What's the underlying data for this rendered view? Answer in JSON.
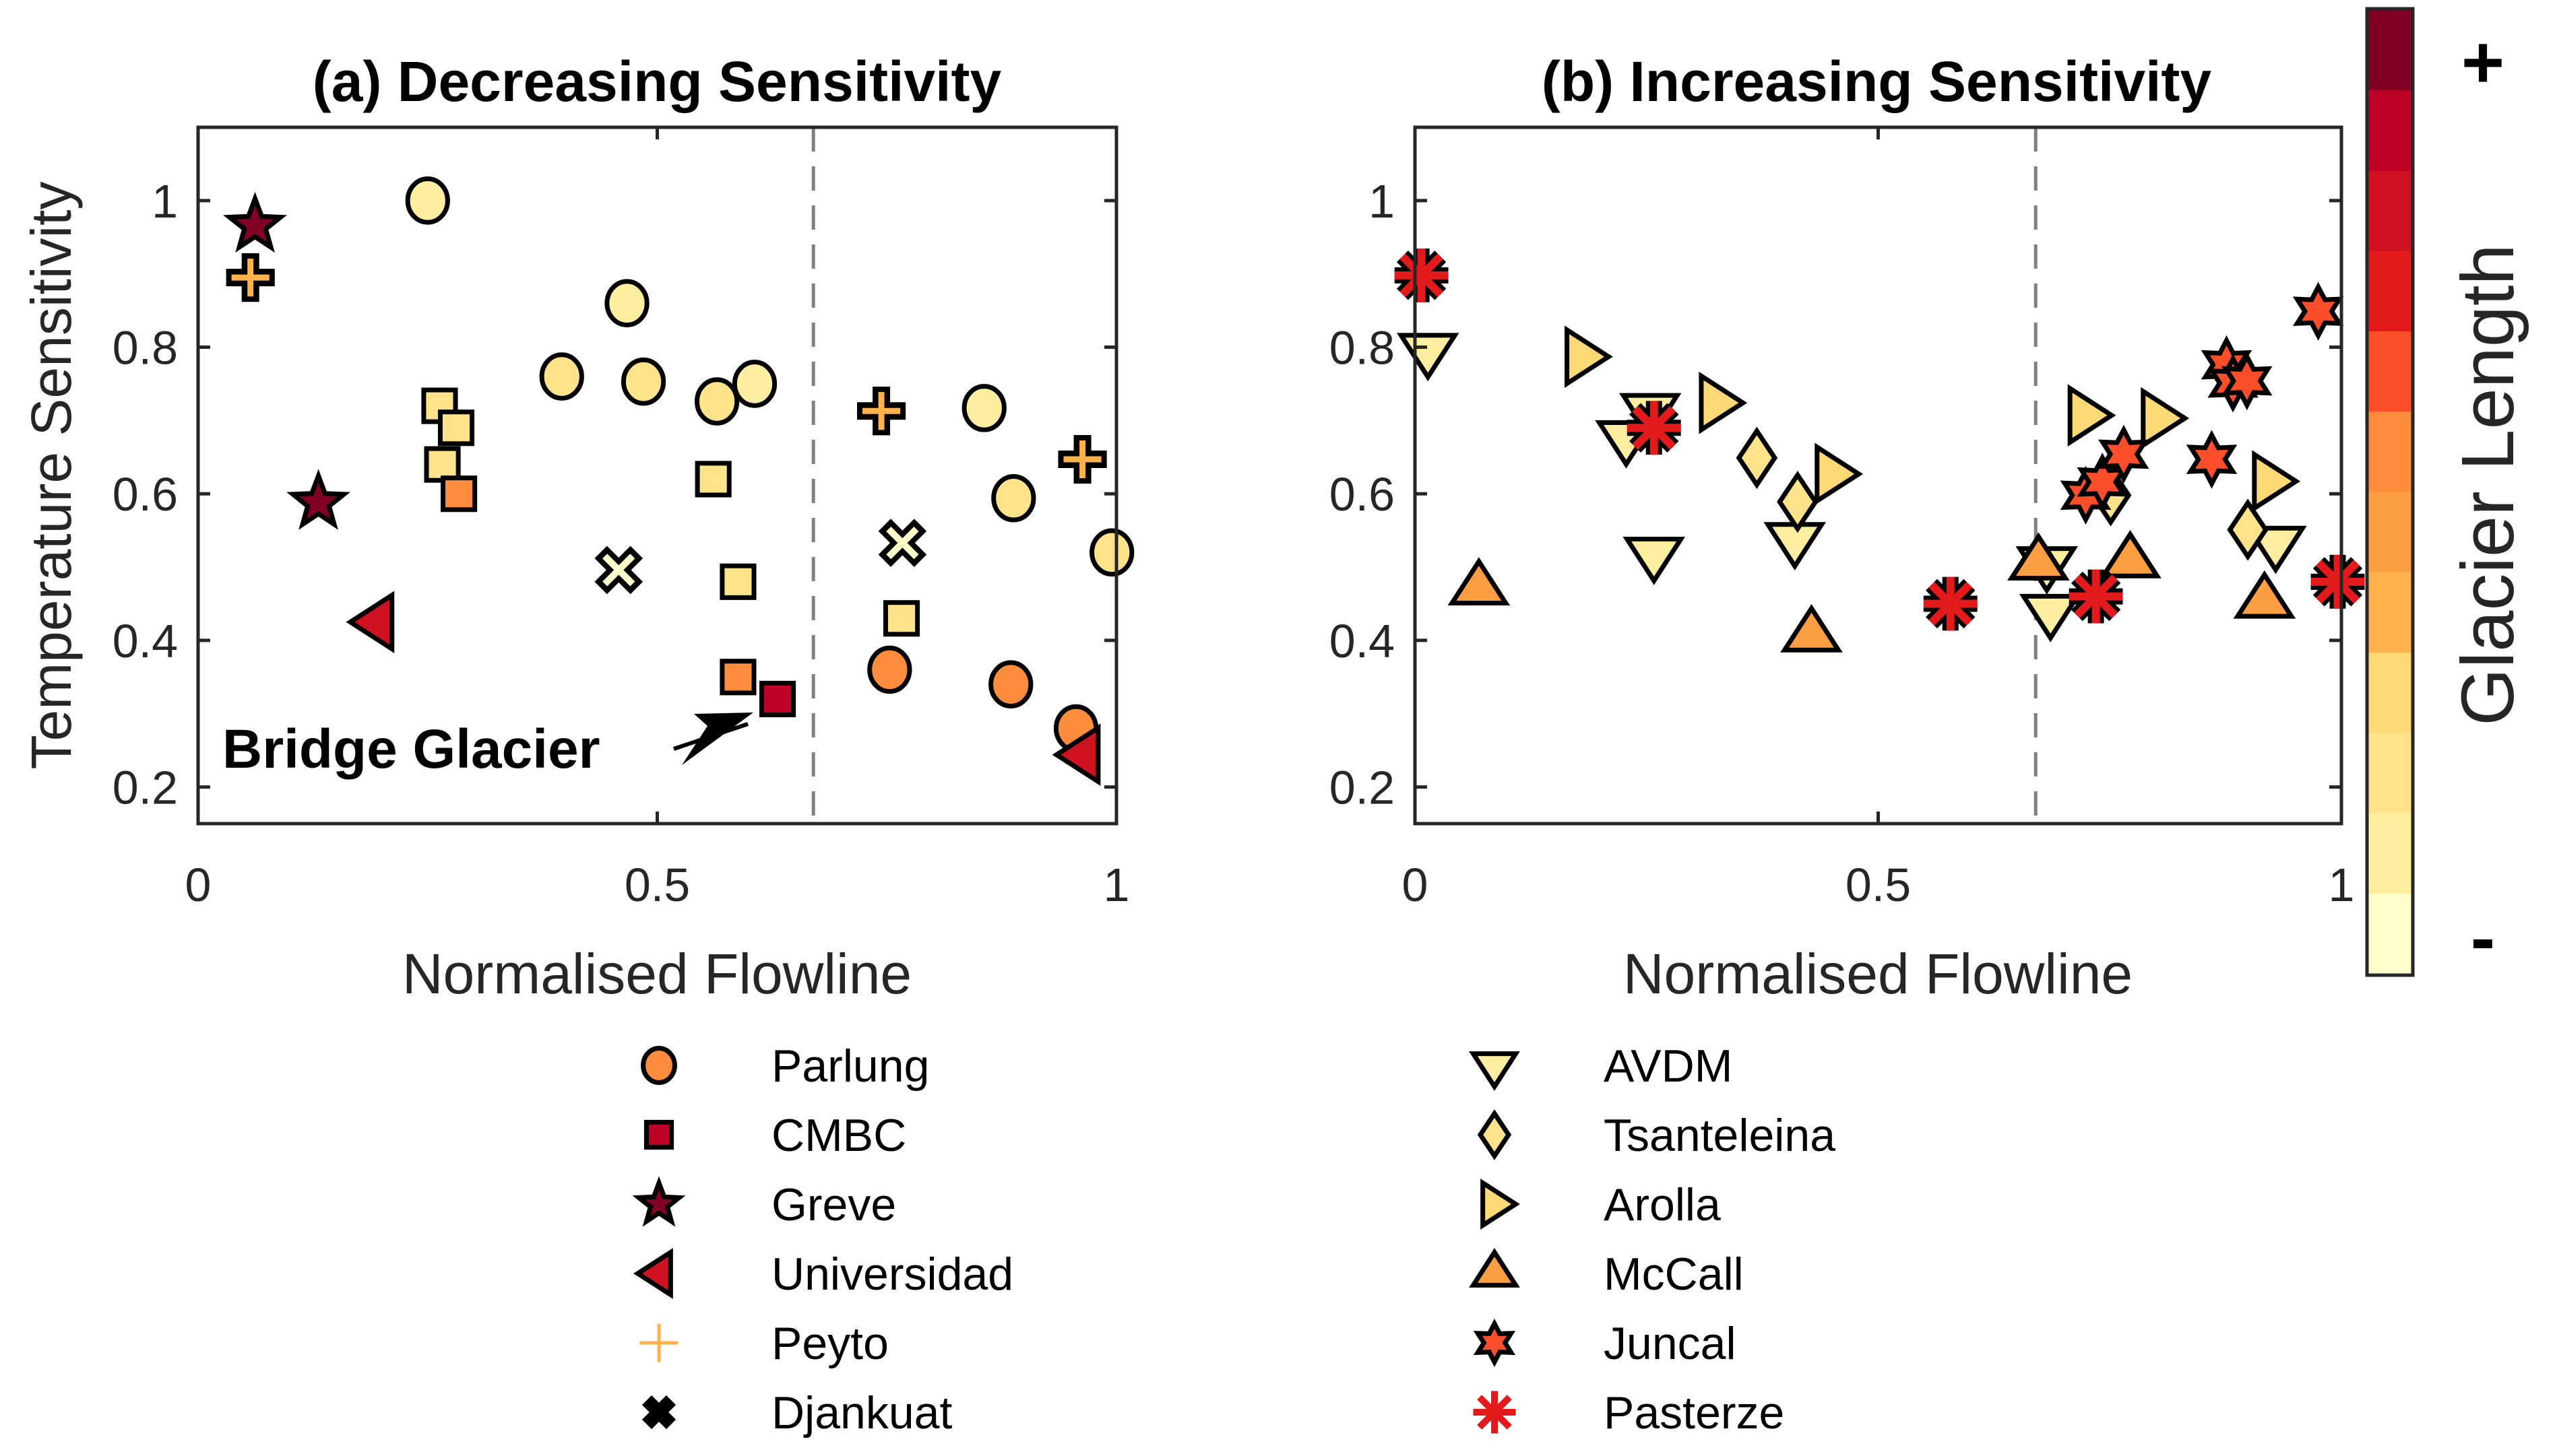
{
  "chart_data": [
    {
      "type": "scatter",
      "title": "(a) Decreasing Sensitivity",
      "xlabel": "Normalised Flowline",
      "ylabel": "Temperature Sensitivity",
      "xlim": [
        0,
        1
      ],
      "ylim": [
        0.15,
        1.1
      ],
      "xticks": [
        0,
        0.5,
        1
      ],
      "xtick_labels": [
        "0",
        "0.5",
        "1"
      ],
      "yticks": [
        0.2,
        0.4,
        0.6,
        0.8,
        1
      ],
      "ytick_labels": [
        "0.2",
        "0.4",
        "0.6",
        "0.8",
        "1"
      ],
      "grid": false,
      "vline": {
        "x": 0.67,
        "style": "dashed"
      },
      "annotation": {
        "text": "Bridge Glacier",
        "points_to": {
          "x": 0.631,
          "y": 0.32
        }
      },
      "series": [
        {
          "name": "Parlung",
          "marker": "circle",
          "points": [
            {
              "x": 0.25,
              "y": 1.0,
              "color": "#FFEDA0"
            },
            {
              "x": 0.467,
              "y": 0.86,
              "color": "#FFEDA0"
            },
            {
              "x": 0.396,
              "y": 0.76,
              "color": "#FEE38A"
            },
            {
              "x": 0.485,
              "y": 0.753,
              "color": "#FEE38A"
            },
            {
              "x": 0.565,
              "y": 0.726,
              "color": "#FEE38A"
            },
            {
              "x": 0.606,
              "y": 0.75,
              "color": "#FFEDA0"
            },
            {
              "x": 0.856,
              "y": 0.717,
              "color": "#FFEDA0"
            },
            {
              "x": 0.888,
              "y": 0.594,
              "color": "#FEE38A"
            },
            {
              "x": 0.995,
              "y": 0.52,
              "color": "#FEE38A"
            },
            {
              "x": 0.753,
              "y": 0.36,
              "color": "#FD8D3C"
            },
            {
              "x": 0.885,
              "y": 0.34,
              "color": "#FD8D3C"
            },
            {
              "x": 0.956,
              "y": 0.28,
              "color": "#FD8D3C"
            }
          ]
        },
        {
          "name": "CMBC",
          "marker": "square",
          "points": [
            {
              "x": 0.263,
              "y": 0.72,
              "color": "#FEE38A"
            },
            {
              "x": 0.281,
              "y": 0.69,
              "color": "#FEE38A"
            },
            {
              "x": 0.266,
              "y": 0.64,
              "color": "#FEE38A"
            },
            {
              "x": 0.284,
              "y": 0.6,
              "color": "#FD8D3C"
            },
            {
              "x": 0.561,
              "y": 0.62,
              "color": "#FEE38A"
            },
            {
              "x": 0.588,
              "y": 0.48,
              "color": "#FEE38A"
            },
            {
              "x": 0.766,
              "y": 0.43,
              "color": "#FEE38A"
            },
            {
              "x": 0.588,
              "y": 0.35,
              "color": "#FD8D3C"
            },
            {
              "x": 0.631,
              "y": 0.32,
              "color": "#BD0026"
            }
          ]
        },
        {
          "name": "Greve",
          "marker": "star5",
          "points": [
            {
              "x": 0.062,
              "y": 0.966,
              "color": "#800026"
            },
            {
              "x": 0.131,
              "y": 0.588,
              "color": "#800026"
            }
          ]
        },
        {
          "name": "Universidad",
          "marker": "triangle-left",
          "points": [
            {
              "x": 0.195,
              "y": 0.425,
              "color": "#D0111F"
            },
            {
              "x": 0.964,
              "y": 0.244,
              "color": "#D0111F"
            }
          ]
        },
        {
          "name": "Peyto",
          "marker": "plus",
          "points": [
            {
              "x": 0.057,
              "y": 0.895,
              "color": "#FEB24C"
            },
            {
              "x": 0.744,
              "y": 0.713,
              "color": "#FEB24C"
            },
            {
              "x": 0.963,
              "y": 0.647,
              "color": "#FEB24C"
            }
          ]
        },
        {
          "name": "Djankuat",
          "marker": "x",
          "points": [
            {
              "x": 0.458,
              "y": 0.496,
              "color": "#FFFFCC"
            },
            {
              "x": 0.767,
              "y": 0.533,
              "color": "#FFFFCC"
            }
          ]
        }
      ]
    },
    {
      "type": "scatter",
      "title": "(b) Increasing Sensitivity",
      "xlabel": "Normalised Flowline",
      "ylabel": "",
      "xlim": [
        0,
        1
      ],
      "ylim": [
        0.15,
        1.1
      ],
      "xticks": [
        0,
        0.5,
        1
      ],
      "xtick_labels": [
        "0",
        "0.5",
        "1"
      ],
      "yticks": [
        0.2,
        0.4,
        0.6,
        0.8,
        1
      ],
      "ytick_labels": [
        "0.2",
        "0.4",
        "0.6",
        "0.8",
        "1"
      ],
      "grid": false,
      "vline": {
        "x": 0.67,
        "style": "dashed"
      },
      "series": [
        {
          "name": "AVDM",
          "marker": "triangle-down",
          "points": [
            {
              "x": 0.014,
              "y": 0.796,
              "color": "#FFEDA0"
            },
            {
              "x": 0.254,
              "y": 0.714,
              "color": "#FFEDA0"
            },
            {
              "x": 0.228,
              "y": 0.677,
              "color": "#FFEDA0"
            },
            {
              "x": 0.258,
              "y": 0.518,
              "color": "#FFEDA0"
            },
            {
              "x": 0.41,
              "y": 0.538,
              "color": "#FFEDA0"
            },
            {
              "x": 0.682,
              "y": 0.505,
              "color": "#FFEDA0"
            },
            {
              "x": 0.686,
              "y": 0.44,
              "color": "#FFEDA0"
            },
            {
              "x": 0.929,
              "y": 0.533,
              "color": "#FFEDA0"
            }
          ]
        },
        {
          "name": "Tsanteleina",
          "marker": "diamond",
          "points": [
            {
              "x": 0.369,
              "y": 0.649,
              "color": "#FEE38A"
            },
            {
              "x": 0.413,
              "y": 0.589,
              "color": "#FEE38A"
            },
            {
              "x": 0.751,
              "y": 0.598,
              "color": "#FEE38A"
            },
            {
              "x": 0.899,
              "y": 0.551,
              "color": "#FEE38A"
            }
          ]
        },
        {
          "name": "Arolla",
          "marker": "triangle-right",
          "points": [
            {
              "x": 0.18,
              "y": 0.787,
              "color": "#FED976"
            },
            {
              "x": 0.325,
              "y": 0.724,
              "color": "#FED976"
            },
            {
              "x": 0.45,
              "y": 0.627,
              "color": "#FED976"
            },
            {
              "x": 0.723,
              "y": 0.707,
              "color": "#FED976"
            },
            {
              "x": 0.802,
              "y": 0.703,
              "color": "#FED976"
            },
            {
              "x": 0.922,
              "y": 0.617,
              "color": "#FED976"
            }
          ]
        },
        {
          "name": "McCall",
          "marker": "triangle-up",
          "points": [
            {
              "x": 0.069,
              "y": 0.471,
              "color": "#FD9E42"
            },
            {
              "x": 0.428,
              "y": 0.407,
              "color": "#FD9E42"
            },
            {
              "x": 0.673,
              "y": 0.505,
              "color": "#FD9E42"
            },
            {
              "x": 0.772,
              "y": 0.508,
              "color": "#FD9E42"
            },
            {
              "x": 0.917,
              "y": 0.453,
              "color": "#FD9E42"
            }
          ]
        },
        {
          "name": "Juncal",
          "marker": "hexagram",
          "points": [
            {
              "x": 0.724,
              "y": 0.598,
              "color": "#FC4E2A"
            },
            {
              "x": 0.742,
              "y": 0.616,
              "color": "#FC4E2A"
            },
            {
              "x": 0.765,
              "y": 0.654,
              "color": "#FC4E2A"
            },
            {
              "x": 0.86,
              "y": 0.647,
              "color": "#FC4E2A"
            },
            {
              "x": 0.876,
              "y": 0.776,
              "color": "#FC4E2A"
            },
            {
              "x": 0.883,
              "y": 0.751,
              "color": "#FC4E2A"
            },
            {
              "x": 0.898,
              "y": 0.754,
              "color": "#FC4E2A"
            },
            {
              "x": 0.975,
              "y": 0.849,
              "color": "#FC4E2A"
            }
          ]
        },
        {
          "name": "Pasterze",
          "marker": "asterisk",
          "points": [
            {
              "x": 0.007,
              "y": 0.898,
              "color": "#E31A1C"
            },
            {
              "x": 0.258,
              "y": 0.69,
              "color": "#E31A1C"
            },
            {
              "x": 0.578,
              "y": 0.45,
              "color": "#E31A1C"
            },
            {
              "x": 0.735,
              "y": 0.46,
              "color": "#E31A1C"
            },
            {
              "x": 0.996,
              "y": 0.48,
              "color": "#E31A1C"
            }
          ]
        }
      ]
    }
  ],
  "legend_left": [
    {
      "label": "Parlung",
      "marker": "circle",
      "color": "#FD8D3C"
    },
    {
      "label": "CMBC",
      "marker": "square",
      "color": "#BD0026"
    },
    {
      "label": "Greve",
      "marker": "star5",
      "color": "#800026"
    },
    {
      "label": "Universidad",
      "marker": "triangle-left",
      "color": "#D0111F"
    },
    {
      "label": "Peyto",
      "marker": "plus-thin",
      "color": "#FEB24C"
    },
    {
      "label": "Djankuat",
      "marker": "x-black",
      "color": "#000000"
    }
  ],
  "legend_right": [
    {
      "label": "AVDM",
      "marker": "triangle-down",
      "color": "#FFEDA0"
    },
    {
      "label": "Tsanteleina",
      "marker": "diamond",
      "color": "#FEE38A"
    },
    {
      "label": "Arolla",
      "marker": "triangle-right",
      "color": "#FED976"
    },
    {
      "label": "McCall",
      "marker": "triangle-up",
      "color": "#FD9E42"
    },
    {
      "label": "Juncal",
      "marker": "hexagram",
      "color": "#FC4E2A"
    },
    {
      "label": "Pasterze",
      "marker": "asterisk-thin",
      "color": "#E31A1C"
    }
  ],
  "colorbar": {
    "label": "Glacier Length",
    "top_label": "+",
    "bottom_label": "-",
    "colors_top_to_bottom": [
      "#800026",
      "#BD0026",
      "#D0111F",
      "#E31A1C",
      "#FC4E2A",
      "#FD8D3C",
      "#FD9E42",
      "#FEB24C",
      "#FED976",
      "#FEE38A",
      "#FFEDA0",
      "#FFFFCC"
    ]
  }
}
